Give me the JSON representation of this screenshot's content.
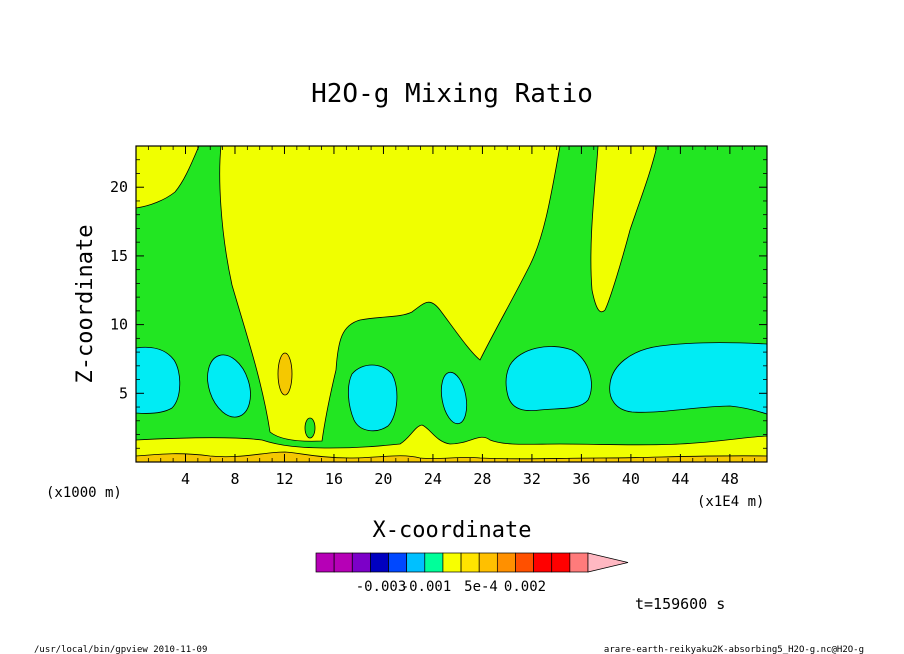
{
  "chart_data": {
    "type": "heatmap",
    "title": "H2O-g Mixing Ratio",
    "xlabel": "X-coordinate",
    "ylabel": "Z-coordinate",
    "x_unit_left": "(x1000 m)",
    "x_unit_right": "(x1E4 m)",
    "xlim": [
      0,
      51
    ],
    "ylim": [
      0,
      23
    ],
    "x_ticks": [
      "4",
      "8",
      "12",
      "16",
      "20",
      "24",
      "28",
      "32",
      "36",
      "40",
      "44",
      "48"
    ],
    "y_ticks": [
      "5",
      "10",
      "15",
      "20"
    ],
    "legend_labels": [
      "-0.003",
      "-0.001",
      "5e-4",
      "0.002"
    ],
    "time_label": "t=159600 s",
    "colors": {
      "yellow": "#f0ff00",
      "green": "#22e622",
      "cyan": "#00ecf4",
      "orange": "#f5c800"
    },
    "colorbar_colors": [
      "#b600b6",
      "#b600b6",
      "#7c00c8",
      "#0000c0",
      "#0048ff",
      "#00c0ff",
      "#00ff9a",
      "#f8ff00",
      "#ffe400",
      "#ffc000",
      "#ff9000",
      "#ff5000",
      "#ff0000",
      "#ff0000",
      "#ff7b7b",
      "#ffb8c2"
    ]
  },
  "footer": {
    "left": "/usr/local/bin/gpview   2010-11-09",
    "right": "arare-earth-reikyaku2K-absorbing5_H2O-g.nc@H2O-g"
  }
}
